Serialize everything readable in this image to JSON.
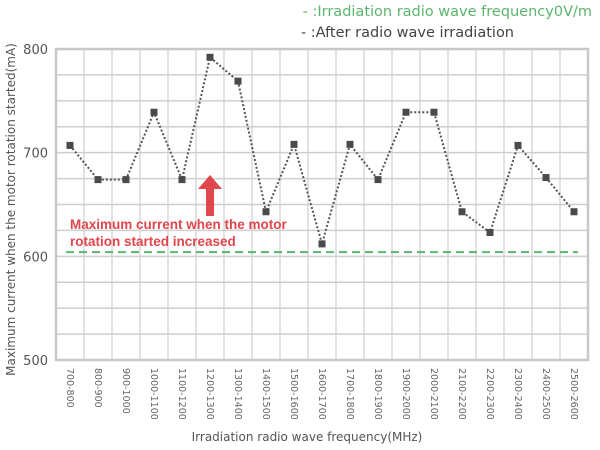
{
  "chart_data": {
    "type": "line",
    "categories": [
      "700-800",
      "800-900",
      "900-1000",
      "1000-1100",
      "1100-1200",
      "1200-1300",
      "1300-1400",
      "1400-1500",
      "1500-1600",
      "1600-1700",
      "1700-1800",
      "1800-1900",
      "1900-2000",
      "2000-2100",
      "2100-2200",
      "2200-2300",
      "2300-2400",
      "2400-2500",
      "2500-2600"
    ],
    "series": [
      {
        "name": "After radio wave irradiation",
        "legend_label": "- :After radio wave irradiation",
        "color": "#4a4a4a",
        "style": "dotted with square markers",
        "values": [
          707,
          674,
          674,
          739,
          674,
          792,
          769,
          643,
          708,
          612,
          708,
          674,
          739,
          739,
          643,
          623,
          707,
          676,
          643
        ]
      },
      {
        "name": "Irradiation radio wave frequency0V/m",
        "legend_label": "- :Irradiation radio wave frequency0V/m",
        "color": "#5cb46e",
        "style": "dashed",
        "values": [
          604,
          604,
          604,
          604,
          604,
          604,
          604,
          604,
          604,
          604,
          604,
          604,
          604,
          604,
          604,
          604,
          604,
          604,
          604
        ]
      }
    ],
    "xlabel": "Irradiation radio wave frequency(MHz)",
    "ylabel": "Maximum current when the motor rotation started(mA)",
    "ylim": [
      500,
      800
    ],
    "yticks": [
      500,
      600,
      700,
      800
    ],
    "grid": true,
    "legend": "top-right",
    "annotation": {
      "text_line1": "Maximum current when the motor",
      "text_line2": "rotation started increased",
      "color": "#e0474c",
      "arrow": "up"
    }
  }
}
